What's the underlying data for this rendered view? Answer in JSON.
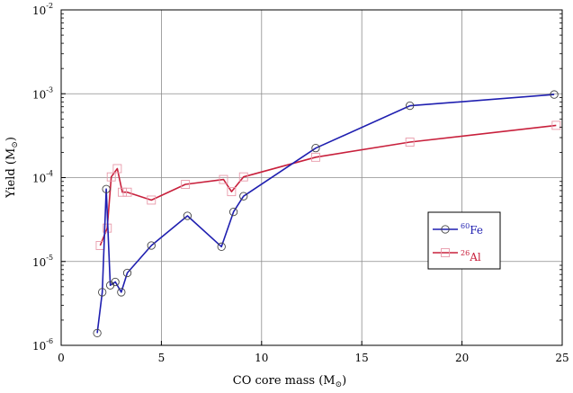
{
  "chart_data": {
    "type": "line",
    "xlabel": "CO core mass (M",
    "xlabel_sub": "⊙",
    "xlabel_close": ")",
    "ylabel": "Yield (M",
    "ylabel_sub": "⊙",
    "ylabel_close": ")",
    "xlim": [
      0,
      25
    ],
    "ylim": [
      1e-06,
      0.01
    ],
    "y_scale": "log",
    "grid": true,
    "legend_position": "right",
    "x_ticks": [
      0,
      5,
      10,
      15,
      20,
      25
    ],
    "x_tick_labels": [
      "0",
      "5",
      "10",
      "15",
      "20",
      "25"
    ],
    "y_ticks": [
      1e-06,
      1e-05,
      0.0001,
      0.001,
      0.01
    ],
    "y_tick_labels": [
      {
        "base": "10",
        "exp": "-6"
      },
      {
        "base": "10",
        "exp": "-5"
      },
      {
        "base": "10",
        "exp": "-4"
      },
      {
        "base": "10",
        "exp": "-3"
      },
      {
        "base": "10",
        "exp": "-2"
      }
    ],
    "series": [
      {
        "name": "Fe",
        "name_sup": "60",
        "color": "#1f1fb0",
        "marker": "circle",
        "x": [
          1.8,
          2.05,
          2.25,
          2.45,
          2.7,
          3.0,
          3.3,
          4.5,
          6.3,
          8.0,
          8.6,
          9.1,
          12.7,
          17.4,
          24.6
        ],
        "y": [
          1.4e-06,
          4.3e-06,
          7.3e-05,
          5.2e-06,
          5.7e-06,
          4.3e-06,
          7.3e-06,
          1.55e-05,
          3.5e-05,
          1.5e-05,
          3.9e-05,
          6e-05,
          0.000225,
          0.00072,
          0.00098
        ]
      },
      {
        "name": "Al",
        "name_sup": "26",
        "color": "#c8203c",
        "marker": "square",
        "x": [
          1.95,
          2.3,
          2.5,
          2.8,
          3.05,
          3.3,
          4.5,
          6.2,
          8.1,
          8.5,
          9.1,
          12.7,
          17.4,
          24.7
        ],
        "y": [
          1.55e-05,
          2.5e-05,
          0.000102,
          0.000128,
          6.7e-05,
          6.7e-05,
          5.4e-05,
          8.3e-05,
          9.5e-05,
          6.8e-05,
          0.000102,
          0.000175,
          0.000265,
          0.00042
        ]
      }
    ]
  }
}
